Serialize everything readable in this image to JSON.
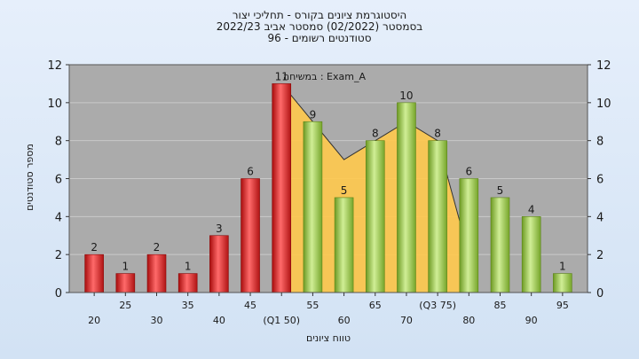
{
  "titles": [
    "היסטוגרמת ציונים בקורס - תחליכי יצור",
    "בסמסטר  (02/2022)  סמסטר אביב 2022/23",
    "סטודנטים רשומים - 96"
  ],
  "legend_text": "במשיחה : Exam_A",
  "colors": {
    "background_top": "#e6effb",
    "plot_background": "#ababab",
    "red_bar": "#d81e1e",
    "green_bar": "#8cbf3c",
    "area_fill": "#ffc94d",
    "line": "#333333"
  },
  "chart_data": {
    "type": "bar",
    "ylabel": "מספר סטודנטים",
    "xlabel": "טווח ציונים",
    "ylim": [
      0,
      12
    ],
    "yticks": [
      0,
      2,
      4,
      6,
      8,
      10,
      12
    ],
    "grid": true,
    "x_tick_labels": [
      "20",
      "25",
      "30",
      "35",
      "40",
      "45",
      "(Q1 50)",
      "55",
      "60",
      "65",
      "70",
      "(Q3 75)",
      "80",
      "85",
      "90",
      "95"
    ],
    "bars": [
      {
        "x": 20,
        "value": 2,
        "color": "red"
      },
      {
        "x": 25,
        "value": 1,
        "color": "red"
      },
      {
        "x": 30,
        "value": 2,
        "color": "red"
      },
      {
        "x": 35,
        "value": 1,
        "color": "red"
      },
      {
        "x": 40,
        "value": 3,
        "color": "red"
      },
      {
        "x": 45,
        "value": 6,
        "color": "red"
      },
      {
        "x": 50,
        "value": 11,
        "color": "red"
      },
      {
        "x": 55,
        "value": 9,
        "color": "green"
      },
      {
        "x": 60,
        "value": 5,
        "color": "green"
      },
      {
        "x": 65,
        "value": 8,
        "color": "green"
      },
      {
        "x": 70,
        "value": 10,
        "color": "green"
      },
      {
        "x": 75,
        "value": 8,
        "color": "green"
      },
      {
        "x": 80,
        "value": 6,
        "color": "green"
      },
      {
        "x": 85,
        "value": 5,
        "color": "green"
      },
      {
        "x": 90,
        "value": 4,
        "color": "green"
      },
      {
        "x": 95,
        "value": 1,
        "color": "green"
      }
    ],
    "area_series": {
      "x": [
        50,
        55,
        60,
        65,
        70,
        75,
        80
      ],
      "values": [
        11,
        9,
        7,
        8,
        9,
        8,
        2
      ]
    }
  }
}
